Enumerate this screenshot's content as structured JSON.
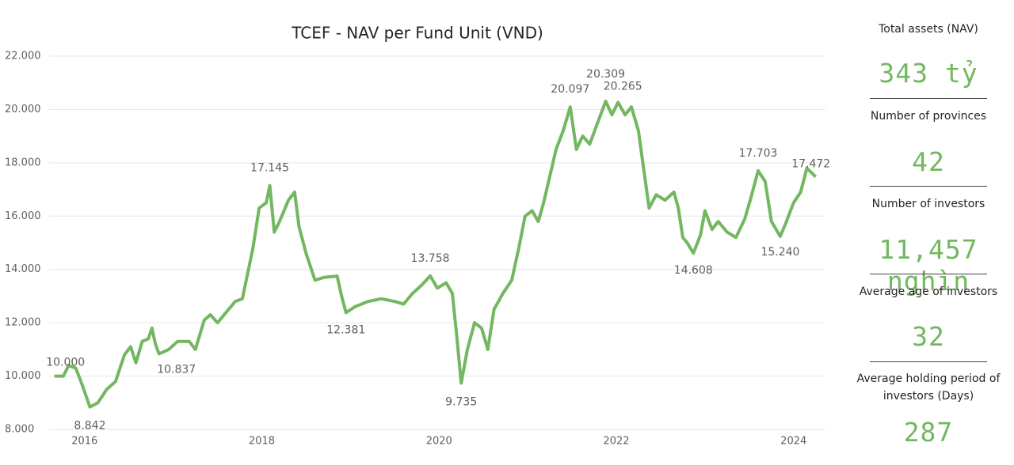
{
  "chart_data": {
    "type": "line",
    "title": "TCEF - NAV per Fund Unit (VND)",
    "xlim": [
      2015.6,
      2024.36
    ],
    "xticks": [
      2016,
      2018,
      2020,
      2022,
      2024
    ],
    "ylim": [
      8000,
      22000
    ],
    "yticks": [
      {
        "value": 8000,
        "label": "8.000"
      },
      {
        "value": 10000,
        "label": "10.000"
      },
      {
        "value": 12000,
        "label": "12.000"
      },
      {
        "value": 14000,
        "label": "14.000"
      },
      {
        "value": 16000,
        "label": "16.000"
      },
      {
        "value": 18000,
        "label": "18.000"
      },
      {
        "value": 20000,
        "label": "20.000"
      },
      {
        "value": 22000,
        "label": "22.000"
      }
    ],
    "grid": true,
    "series": [
      {
        "color": "#73b761",
        "x": [
          2015.66,
          2015.76,
          2015.82,
          2015.9,
          2015.97,
          2016.06,
          2016.15,
          2016.25,
          2016.35,
          2016.45,
          2016.52,
          2016.58,
          2016.65,
          2016.72,
          2016.76,
          2016.8,
          2016.84,
          2016.95,
          2017.05,
          2017.18,
          2017.25,
          2017.35,
          2017.42,
          2017.5,
          2017.6,
          2017.7,
          2017.78,
          2017.85,
          2017.9,
          2017.97,
          2018.05,
          2018.09,
          2018.14,
          2018.2,
          2018.3,
          2018.37,
          2018.42,
          2018.5,
          2018.6,
          2018.7,
          2018.85,
          2018.9,
          2018.95,
          2019.05,
          2019.2,
          2019.35,
          2019.5,
          2019.6,
          2019.7,
          2019.8,
          2019.9,
          2019.98,
          2020.08,
          2020.15,
          2020.2,
          2020.25,
          2020.32,
          2020.4,
          2020.48,
          2020.55,
          2020.62,
          2020.72,
          2020.82,
          2020.9,
          2020.97,
          2021.05,
          2021.12,
          2021.18,
          2021.25,
          2021.32,
          2021.4,
          2021.48,
          2021.55,
          2021.62,
          2021.7,
          2021.8,
          2021.88,
          2021.95,
          2022.02,
          2022.1,
          2022.17,
          2022.25,
          2022.32,
          2022.37,
          2022.45,
          2022.55,
          2022.65,
          2022.7,
          2022.75,
          2022.8,
          2022.87,
          2022.95,
          2023.0,
          2023.08,
          2023.15,
          2023.25,
          2023.35,
          2023.45,
          2023.52,
          2023.6,
          2023.68,
          2023.75,
          2023.85,
          2023.92,
          2024.0,
          2024.08,
          2024.15,
          2024.25
        ],
        "values": [
          10000,
          10000,
          10400,
          10300,
          9700,
          8842,
          9000,
          9500,
          9800,
          10800,
          11100,
          10500,
          11300,
          11400,
          11800,
          11200,
          10837,
          11000,
          11300,
          11300,
          11000,
          12100,
          12300,
          12000,
          12400,
          12800,
          12900,
          14000,
          14800,
          16300,
          16500,
          17145,
          15400,
          15800,
          16600,
          16900,
          15600,
          14600,
          13600,
          13700,
          13750,
          13000,
          12381,
          12600,
          12800,
          12900,
          12800,
          12700,
          13100,
          13400,
          13758,
          13300,
          13500,
          13100,
          11500,
          9735,
          11000,
          12000,
          11800,
          11000,
          12500,
          13100,
          13600,
          14800,
          16000,
          16200,
          15800,
          16500,
          17500,
          18500,
          19200,
          20097,
          18500,
          19000,
          18700,
          19600,
          20309,
          19800,
          20265,
          19800,
          20100,
          19200,
          17500,
          16300,
          16800,
          16600,
          16900,
          16300,
          15200,
          15000,
          14608,
          15300,
          16200,
          15500,
          15800,
          15400,
          15200,
          15900,
          16700,
          17703,
          17300,
          15800,
          15240,
          15800,
          16500,
          16900,
          17800,
          17472
        ]
      }
    ],
    "annotations": [
      {
        "x": 2015.66,
        "y": 10000,
        "label": "10.000"
      },
      {
        "x": 2016.06,
        "y": 8842,
        "label": "8.842"
      },
      {
        "x": 2016.84,
        "y": 10837,
        "label": "10.837"
      },
      {
        "x": 2018.09,
        "y": 17145,
        "label": "17.145"
      },
      {
        "x": 2018.95,
        "y": 12381,
        "label": "12.381"
      },
      {
        "x": 2019.9,
        "y": 13758,
        "label": "13.758"
      },
      {
        "x": 2020.25,
        "y": 9735,
        "label": "9.735"
      },
      {
        "x": 2021.48,
        "y": 20097,
        "label": "20.097"
      },
      {
        "x": 2021.88,
        "y": 20309,
        "label": "20.309"
      },
      {
        "x": 2022.02,
        "y": 20265,
        "label": "20.265"
      },
      {
        "x": 2022.87,
        "y": 14608,
        "label": "14.608"
      },
      {
        "x": 2023.6,
        "y": 17703,
        "label": "17.703"
      },
      {
        "x": 2023.85,
        "y": 15240,
        "label": "15.240"
      },
      {
        "x": 2024.25,
        "y": 17472,
        "label": "17.472"
      }
    ]
  },
  "kpis": [
    {
      "label": "Total assets (NAV)",
      "value": "343 tỷ"
    },
    {
      "label": "Number of provinces",
      "value": "42"
    },
    {
      "label": "Number of investors",
      "value": "11,457 nghìn"
    },
    {
      "label": "Average age of investors",
      "value": "32"
    },
    {
      "label": "Average holding period of investors (Days)",
      "value": "287"
    }
  ]
}
